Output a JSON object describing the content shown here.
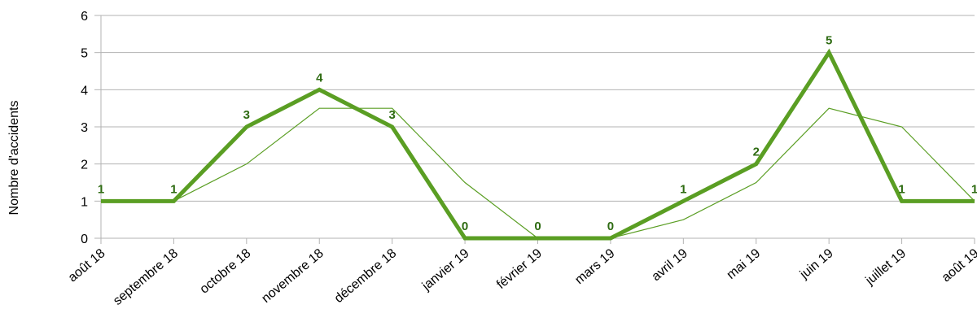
{
  "chart_data": {
    "type": "line",
    "ylabel": "Nombre d'accidents",
    "ylim": [
      0,
      6
    ],
    "yticks": [
      "0",
      "1",
      "2",
      "3",
      "4",
      "5",
      "6"
    ],
    "grid": true,
    "categories": [
      "août 18",
      "septembre 18",
      "octobre 18",
      "novembre 18",
      "décembre 18",
      "janvier 19",
      "février 19",
      "mars 19",
      "avril 19",
      "mai 19",
      "juin 19",
      "juillet 19",
      "août 19"
    ],
    "series": [
      {
        "values": [
          1,
          1,
          3,
          4,
          3,
          0,
          0,
          0,
          1,
          2,
          5,
          1,
          1
        ],
        "color": "#5a9e23",
        "style": "thick",
        "data_labels": [
          "1",
          "1",
          "3",
          "4",
          "3",
          "0",
          "0",
          "0",
          "1",
          "2",
          "5",
          "1",
          "1"
        ],
        "label_color": "#2e6b12"
      },
      {
        "values": [
          1,
          1,
          2,
          3.5,
          3.5,
          1.5,
          0,
          0,
          0.5,
          1.5,
          3.5,
          3,
          1
        ],
        "color": "#5a9e23",
        "style": "thin"
      }
    ]
  }
}
